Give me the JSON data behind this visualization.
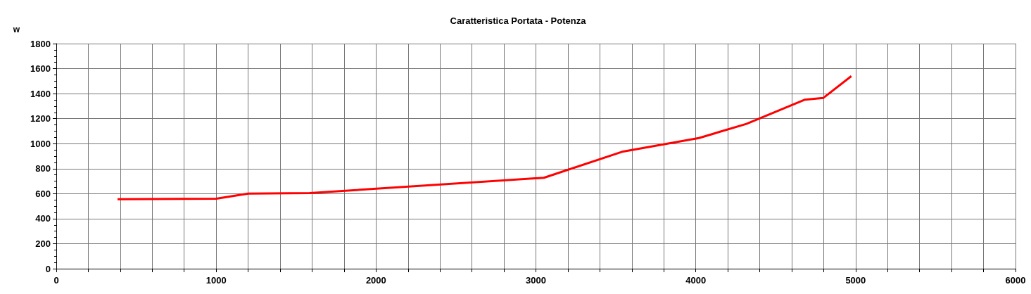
{
  "chart_data": {
    "type": "line",
    "title": "Caratteristica Portata - Potenza",
    "ylabel": "w",
    "x": [
      383,
      1000,
      1200,
      1585,
      3050,
      3545,
      4020,
      4317,
      4683,
      4797,
      4973
    ],
    "series": [
      {
        "color": "#ff0000",
        "values": [
          555,
          560,
          600,
          605,
          727,
          937,
          1045,
          1158,
          1352,
          1365,
          1540
        ]
      }
    ],
    "xlim": [
      0,
      6000
    ],
    "xticks": [
      0,
      {
        "value": 200,
        "label": null
      },
      {
        "value": 400,
        "label": null
      },
      {
        "value": 600,
        "label": null
      },
      {
        "value": 800,
        "label": null
      },
      1000,
      {
        "value": 1200,
        "label": null
      },
      {
        "value": 1400,
        "label": null
      },
      {
        "value": 1600,
        "label": null
      },
      {
        "value": 1800,
        "label": null
      },
      2000,
      {
        "value": 2200,
        "label": null
      },
      {
        "value": 2400,
        "label": null
      },
      {
        "value": 2600,
        "label": null
      },
      {
        "value": 2800,
        "label": null
      },
      3000,
      {
        "value": 3200,
        "label": null
      },
      {
        "value": 3400,
        "label": null
      },
      {
        "value": 3600,
        "label": null
      },
      {
        "value": 3800,
        "label": null
      },
      4000,
      {
        "value": 4200,
        "label": null
      },
      {
        "value": 4400,
        "label": null
      },
      {
        "value": 4600,
        "label": null
      },
      {
        "value": 4800,
        "label": null
      },
      5000,
      {
        "value": 5200,
        "label": null
      },
      {
        "value": 5400,
        "label": null
      },
      {
        "value": 5600,
        "label": null
      },
      {
        "value": 5800,
        "label": null
      },
      6000
    ],
    "ylim": [
      0,
      1800
    ],
    "yticks": [
      0,
      200,
      400,
      600,
      800,
      1000,
      1200,
      1400,
      1600,
      1800
    ],
    "grid": true,
    "marker": "none",
    "line_style": "solid"
  }
}
